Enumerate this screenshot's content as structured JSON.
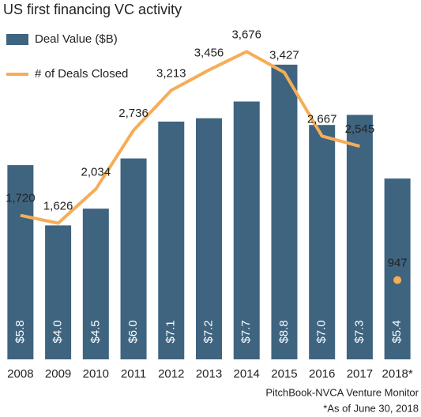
{
  "chart_data": {
    "type": "bar_line",
    "title": "US first financing VC activity",
    "categories": [
      "2008",
      "2009",
      "2010",
      "2011",
      "2012",
      "2013",
      "2014",
      "2015",
      "2016",
      "2017",
      "2018*"
    ],
    "series": [
      {
        "name": "Deal Value ($B)",
        "type": "bar",
        "color": "#3e6480",
        "values": [
          5.8,
          4.0,
          4.5,
          6.0,
          7.1,
          7.2,
          7.7,
          8.8,
          7.0,
          7.3,
          5.4
        ],
        "value_labels": [
          "$5.8",
          "$4.0",
          "$4.5",
          "$6.0",
          "$7.1",
          "$7.2",
          "$7.7",
          "$8.8",
          "$7.0",
          "$7.3",
          "$5.4"
        ]
      },
      {
        "name": "# of Deals Closed",
        "type": "line",
        "axis": "y2",
        "color": "#f6ad58",
        "values": [
          1720,
          1626,
          2034,
          2736,
          3213,
          3456,
          3676,
          3427,
          2667,
          2545,
          947
        ],
        "value_labels": [
          "1,720",
          "1,626",
          "2,034",
          "2,736",
          "3,213",
          "3,456",
          "3,676",
          "3,427",
          "2,667",
          "2,545",
          "947"
        ],
        "last_point_separate": true
      }
    ],
    "ylim": [
      0,
      10
    ],
    "y2lim": [
      0,
      4000
    ],
    "source": "PitchBook-NVCA Venture Monitor",
    "footnote": "*As of June 30, 2018"
  }
}
